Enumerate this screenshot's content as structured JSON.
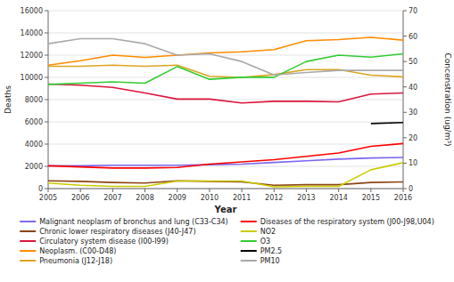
{
  "chart_data": {
    "type": "line",
    "xlabel": "Year",
    "ylabel": "Deaths",
    "y2label": "Concenstration (ug/m³)",
    "x": [
      2005,
      2006,
      2007,
      2008,
      2009,
      2010,
      2011,
      2012,
      2013,
      2014,
      2015,
      2016
    ],
    "xlim": [
      2005,
      2016
    ],
    "xticks": [
      2005,
      2006,
      2007,
      2008,
      2009,
      2010,
      2011,
      2012,
      2013,
      2014,
      2015,
      2016
    ],
    "ylim": [
      0,
      16000
    ],
    "yticks": [
      0,
      2000,
      4000,
      6000,
      8000,
      10000,
      12000,
      14000,
      16000
    ],
    "y2lim": [
      0,
      70
    ],
    "y2ticks": [
      0,
      10,
      20,
      30,
      40,
      50,
      60,
      70
    ],
    "grid": true,
    "legend": "bottom",
    "series": [
      {
        "name": "Malignant neoplasm of bronchus and lung (C33-C34)",
        "color": "#7B68EE",
        "values": [
          2050,
          2050,
          2100,
          2100,
          2100,
          2150,
          2200,
          2350,
          2500,
          2650,
          2750,
          2800
        ]
      },
      {
        "name": "Chronic lower respiratory diseases (J40-J47)",
        "color": "#8B4513",
        "values": [
          700,
          650,
          550,
          500,
          700,
          650,
          600,
          300,
          350,
          350,
          550,
          600
        ]
      },
      {
        "name": "Circulatory system disease (I00-I99)",
        "color": "#DC143C",
        "values": [
          9400,
          9300,
          9100,
          8600,
          8050,
          8050,
          7700,
          7850,
          7850,
          7800,
          8500,
          8600
        ]
      },
      {
        "name": "Neoplasm. (C00-D48)",
        "color": "#FF8C00",
        "values": [
          11100,
          11500,
          12000,
          11800,
          12000,
          12200,
          12300,
          12500,
          13300,
          13400,
          13600,
          13350
        ]
      },
      {
        "name": "Pneumonia (J12-J18)",
        "color": "#DAA520",
        "values": [
          11000,
          11000,
          11100,
          11000,
          11100,
          10100,
          10000,
          10250,
          10700,
          10700,
          10200,
          10050
        ]
      },
      {
        "name": "Diseases of the respiratory system (J00-J98,U04)",
        "color": "#FF0000",
        "values": [
          2050,
          1950,
          1850,
          1850,
          1900,
          2200,
          2400,
          2600,
          2900,
          3200,
          3800,
          4050
        ]
      },
      {
        "name": "NO2",
        "color": "#CCCC00",
        "axis": "y2",
        "values": [
          2.2,
          1.3,
          0.9,
          0.9,
          3.0,
          3.0,
          3.0,
          0.7,
          0.9,
          0.9,
          7.4,
          10.2
        ]
      },
      {
        "name": "O3",
        "color": "#32CD32",
        "axis": "y2",
        "values": [
          41.0,
          41.5,
          42.0,
          41.5,
          48.0,
          43.0,
          43.8,
          43.8,
          50.0,
          52.5,
          51.7,
          53.0
        ]
      },
      {
        "name": "PM2.5",
        "color": "#000000",
        "axis": "y2",
        "values": [
          null,
          null,
          null,
          null,
          null,
          null,
          null,
          null,
          null,
          null,
          25.6,
          26.0
        ]
      },
      {
        "name": "PM10",
        "color": "#A9A9A9",
        "axis": "y2",
        "values": [
          57.0,
          59.0,
          59.0,
          57.0,
          52.5,
          53.0,
          50.0,
          44.7,
          45.7,
          46.5,
          46.5,
          46.5
        ]
      }
    ]
  }
}
